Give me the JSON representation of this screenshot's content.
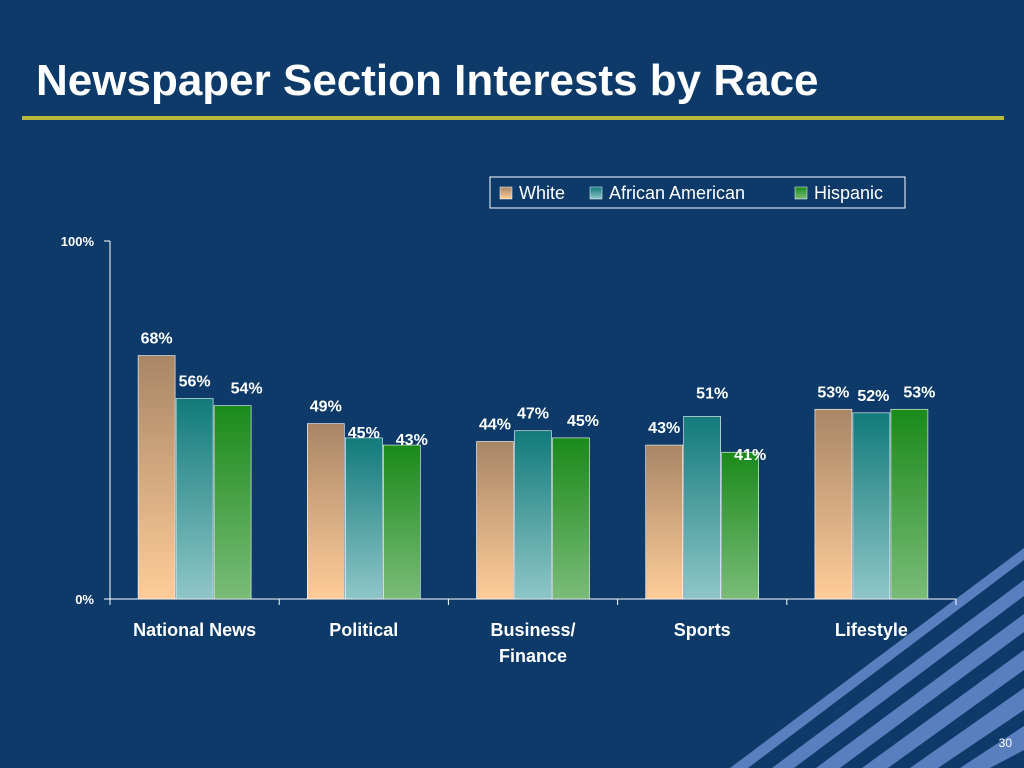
{
  "slide": {
    "title": "Newspaper Section Interests by Race",
    "page_number": "30"
  },
  "chart_data": {
    "type": "bar",
    "title": "",
    "categories": [
      "National News",
      "Political",
      "Business/ Finance",
      "Sports",
      "Lifestyle"
    ],
    "series": [
      {
        "name": "White",
        "values": [
          68,
          49,
          44,
          43,
          53
        ],
        "labels": [
          "68%",
          "49%",
          "44%",
          "43%",
          "53%"
        ]
      },
      {
        "name": "African American",
        "values": [
          56,
          45,
          47,
          51,
          52
        ],
        "labels": [
          "56%",
          "45%",
          "47%",
          "51%",
          "52%"
        ]
      },
      {
        "name": "Hispanic",
        "values": [
          54,
          43,
          45,
          41,
          53
        ],
        "labels": [
          "54%",
          "43%",
          "45%",
          "41%",
          "53%"
        ]
      }
    ],
    "ylim": [
      0,
      100
    ],
    "y_ticks": [
      "0%",
      "100%"
    ],
    "grid": false,
    "legend_position": "top-right",
    "colors": {
      "White": {
        "top": "#a88666",
        "bottom": "#ffcc99"
      },
      "African American": {
        "top": "#127a7a",
        "bottom": "#8fc6c8"
      },
      "Hispanic": {
        "top": "#1a8a1a",
        "bottom": "#7abc78"
      }
    }
  }
}
